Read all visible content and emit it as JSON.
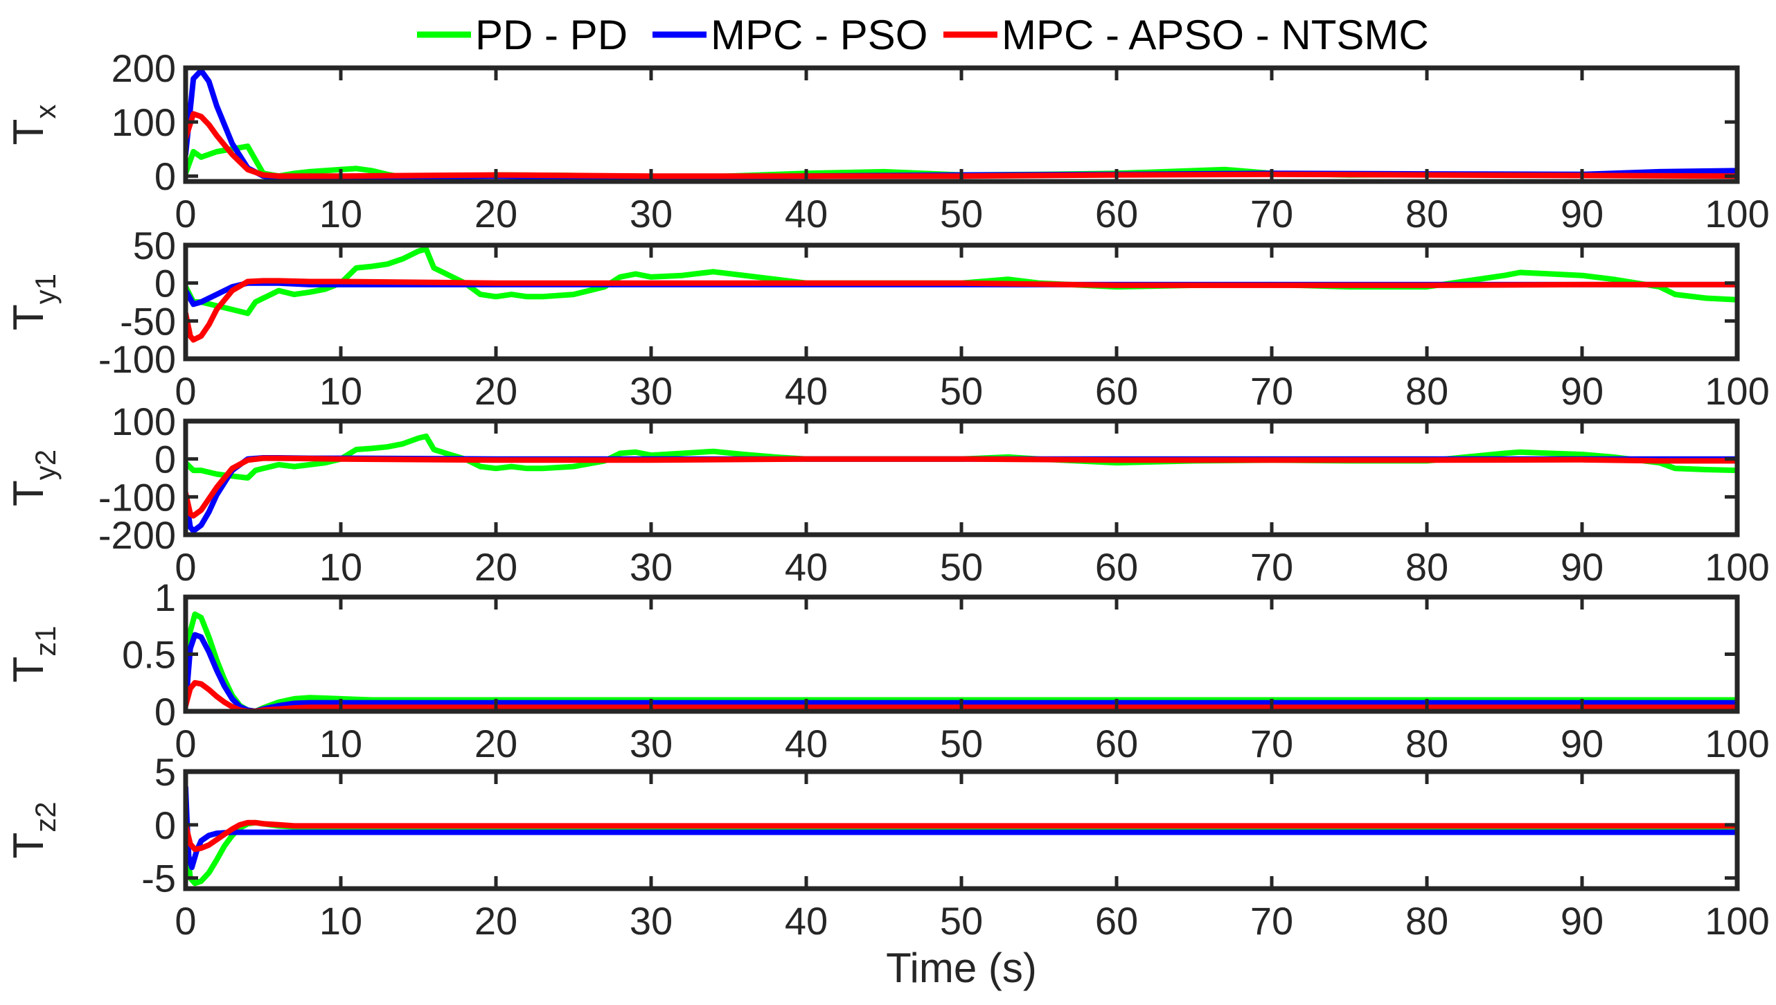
{
  "chart_data": {
    "type": "line",
    "legend": {
      "placement": "top",
      "entries": [
        {
          "label": "PD - PD",
          "color": "#00ff00"
        },
        {
          "label": "MPC - PSO",
          "color": "#0000ff"
        },
        {
          "label": "MPC - APSO - NTSMC",
          "color": "#ff0000"
        }
      ]
    },
    "xlabel": "Time (s)",
    "xlim": [
      0,
      100
    ],
    "xticks": [
      0,
      10,
      20,
      30,
      40,
      50,
      60,
      70,
      80,
      90,
      100
    ],
    "grid": false,
    "subplots": [
      {
        "ylabel_main": "T",
        "ylabel_sub": "x",
        "ylim": [
          -10,
          200
        ],
        "yticks": [
          0,
          100,
          200
        ],
        "ytick_labels": [
          "0",
          "100",
          "200"
        ],
        "series": [
          {
            "name": "PD - PD",
            "color": "#00ff00",
            "x": [
              0,
              0.5,
              1,
              2,
              3,
              4,
              4.5,
              5,
              6,
              7,
              8,
              10,
              11,
              12,
              13,
              14,
              15,
              15.5,
              16,
              17,
              18,
              20,
              25,
              30,
              35,
              40,
              45,
              50,
              55,
              60,
              65,
              67,
              70,
              75,
              80,
              85,
              90,
              95,
              100
            ],
            "y": [
              5,
              45,
              35,
              45,
              50,
              55,
              30,
              5,
              0,
              5,
              8,
              12,
              14,
              10,
              3,
              -2,
              -7,
              -15,
              -7,
              -2,
              0,
              2,
              1,
              -3,
              0,
              5,
              8,
              2,
              3,
              5,
              10,
              12,
              5,
              2,
              3,
              2,
              3,
              2,
              0
            ]
          },
          {
            "name": "MPC - PSO",
            "color": "#0000ff",
            "x": [
              0,
              0.5,
              1,
              1.5,
              2,
              3,
              4,
              5,
              6,
              8,
              10,
              20,
              30,
              40,
              50,
              60,
              70,
              80,
              90,
              95,
              100
            ],
            "y": [
              40,
              180,
              195,
              175,
              130,
              60,
              15,
              0,
              -3,
              -3,
              -2,
              0,
              -3,
              0,
              2,
              3,
              5,
              4,
              3,
              8,
              10
            ]
          },
          {
            "name": "MPC - APSO - NTSMC",
            "color": "#ff0000",
            "x": [
              0,
              0.5,
              1,
              1.5,
              2,
              3,
              4,
              5,
              6,
              8,
              10,
              20,
              30,
              40,
              50,
              60,
              70,
              80,
              90,
              100
            ],
            "y": [
              70,
              115,
              110,
              95,
              75,
              40,
              12,
              2,
              0,
              0,
              0,
              2,
              0,
              0,
              0,
              2,
              3,
              2,
              1,
              0
            ]
          }
        ]
      },
      {
        "ylabel_main": "T",
        "ylabel_sub": "y1",
        "ylim": [
          -100,
          50
        ],
        "yticks": [
          -100,
          -50,
          0,
          50
        ],
        "ytick_labels": [
          "-100",
          "-50",
          "0",
          "50"
        ],
        "series": [
          {
            "name": "PD - PD",
            "color": "#00ff00",
            "x": [
              0,
              0.5,
              1,
              2,
              3,
              4,
              4.5,
              5,
              6,
              7,
              8,
              9,
              10,
              11,
              12,
              13,
              14,
              15,
              15.5,
              16,
              17,
              18,
              19,
              20,
              21,
              22,
              23,
              25,
              27,
              28,
              29,
              30,
              32,
              34,
              36,
              38,
              40,
              45,
              50,
              53,
              55,
              60,
              65,
              70,
              75,
              80,
              85,
              86,
              88,
              90,
              92,
              95,
              96,
              98,
              100
            ],
            "y": [
              -5,
              -25,
              -25,
              -30,
              -35,
              -40,
              -25,
              -20,
              -10,
              -15,
              -12,
              -8,
              0,
              20,
              22,
              25,
              32,
              42,
              45,
              20,
              10,
              0,
              -15,
              -18,
              -15,
              -18,
              -18,
              -15,
              -5,
              8,
              12,
              8,
              10,
              15,
              10,
              5,
              0,
              0,
              0,
              5,
              0,
              -5,
              -3,
              -2,
              -5,
              -5,
              10,
              14,
              12,
              10,
              5,
              -5,
              -15,
              -20,
              -22
            ]
          },
          {
            "name": "MPC - PSO",
            "color": "#0000ff",
            "x": [
              0,
              0.5,
              1,
              2,
              3,
              4,
              5,
              6,
              8,
              10,
              20,
              30,
              40,
              50,
              60,
              70,
              80,
              90,
              100
            ],
            "y": [
              -10,
              -28,
              -25,
              -15,
              -5,
              0,
              0,
              0,
              -2,
              -2,
              -2,
              -2,
              -2,
              -2,
              -2,
              -2,
              -2,
              -2,
              -2
            ]
          },
          {
            "name": "MPC - APSO - NTSMC",
            "color": "#ff0000",
            "x": [
              0,
              0.3,
              0.5,
              1,
              1.5,
              2,
              3,
              4,
              5,
              6,
              8,
              10,
              20,
              30,
              40,
              50,
              60,
              70,
              80,
              90,
              100
            ],
            "y": [
              -40,
              -70,
              -75,
              -70,
              -55,
              -35,
              -10,
              2,
              3,
              3,
              2,
              2,
              0,
              0,
              0,
              0,
              -3,
              -3,
              -3,
              -2,
              -2
            ]
          }
        ]
      },
      {
        "ylabel_main": "T",
        "ylabel_sub": "y2",
        "ylim": [
          -200,
          100
        ],
        "yticks": [
          -200,
          -100,
          0,
          100
        ],
        "ytick_labels": [
          "-200",
          "-100",
          "0",
          "100"
        ],
        "series": [
          {
            "name": "PD - PD",
            "color": "#00ff00",
            "x": [
              0,
              0.5,
              1,
              2,
              3,
              4,
              4.5,
              5,
              6,
              7,
              8,
              9,
              10,
              11,
              12,
              13,
              14,
              15,
              15.5,
              16,
              17,
              18,
              19,
              20,
              21,
              22,
              23,
              25,
              27,
              28,
              29,
              30,
              32,
              34,
              36,
              38,
              40,
              45,
              50,
              53,
              55,
              60,
              65,
              70,
              75,
              80,
              85,
              86,
              88,
              90,
              92,
              95,
              96,
              98,
              100
            ],
            "y": [
              -10,
              -30,
              -30,
              -40,
              -45,
              -50,
              -30,
              -25,
              -15,
              -20,
              -15,
              -10,
              0,
              25,
              28,
              32,
              40,
              55,
              60,
              25,
              12,
              0,
              -20,
              -25,
              -20,
              -25,
              -25,
              -20,
              -5,
              15,
              18,
              10,
              15,
              20,
              12,
              5,
              0,
              0,
              0,
              5,
              0,
              -10,
              -5,
              -3,
              -5,
              -5,
              15,
              18,
              15,
              12,
              5,
              -10,
              -25,
              -28,
              -30
            ]
          },
          {
            "name": "MPC - PSO",
            "color": "#0000ff",
            "x": [
              0,
              0.3,
              0.5,
              1,
              1.5,
              2,
              3,
              4,
              5,
              6,
              8,
              10,
              20,
              30,
              40,
              50,
              60,
              70,
              80,
              90,
              100
            ],
            "y": [
              -100,
              -180,
              -190,
              -175,
              -140,
              -95,
              -30,
              0,
              3,
              3,
              2,
              2,
              0,
              0,
              0,
              0,
              0,
              0,
              0,
              0,
              0
            ]
          },
          {
            "name": "MPC - APSO - NTSMC",
            "color": "#ff0000",
            "x": [
              0,
              0.3,
              0.5,
              1,
              1.5,
              2,
              3,
              4,
              5,
              6,
              8,
              10,
              20,
              30,
              40,
              50,
              60,
              70,
              80,
              90,
              95,
              100
            ],
            "y": [
              -90,
              -145,
              -150,
              -135,
              -105,
              -75,
              -25,
              -3,
              2,
              2,
              1,
              0,
              -3,
              -3,
              0,
              0,
              -3,
              -3,
              -3,
              -2,
              -5,
              -5
            ]
          }
        ]
      },
      {
        "ylabel_main": "T",
        "ylabel_sub": "z1",
        "ylim": [
          0,
          1
        ],
        "yticks": [
          0,
          0.5,
          1
        ],
        "ytick_labels": [
          "0",
          "0.5",
          "1"
        ],
        "series": [
          {
            "name": "PD - PD",
            "color": "#00ff00",
            "x": [
              0,
              0.3,
              0.6,
              1,
              1.5,
              2,
              2.5,
              3,
              3.5,
              4,
              4.5,
              5,
              6,
              7,
              8,
              9,
              10,
              12,
              20,
              40,
              60,
              80,
              100
            ],
            "y": [
              0.05,
              0.7,
              0.85,
              0.82,
              0.65,
              0.45,
              0.28,
              0.14,
              0.05,
              0.01,
              0.0,
              0.03,
              0.08,
              0.11,
              0.12,
              0.115,
              0.11,
              0.1,
              0.1,
              0.1,
              0.1,
              0.1,
              0.1
            ]
          },
          {
            "name": "MPC - PSO",
            "color": "#0000ff",
            "x": [
              0,
              0.3,
              0.6,
              1,
              1.5,
              2,
              2.5,
              3,
              3.5,
              4,
              4.5,
              5,
              6,
              7,
              8,
              10,
              20,
              40,
              60,
              80,
              100
            ],
            "y": [
              0.05,
              0.55,
              0.67,
              0.65,
              0.52,
              0.36,
              0.22,
              0.11,
              0.04,
              0.01,
              0.0,
              0.02,
              0.05,
              0.07,
              0.075,
              0.075,
              0.075,
              0.075,
              0.075,
              0.075,
              0.075
            ]
          },
          {
            "name": "MPC - APSO - NTSMC",
            "color": "#ff0000",
            "x": [
              0,
              0.3,
              0.6,
              1,
              1.5,
              2,
              2.5,
              3,
              3.5,
              4,
              4.5,
              5,
              6,
              7,
              8,
              10,
              20,
              40,
              60,
              80,
              100
            ],
            "y": [
              0.05,
              0.2,
              0.25,
              0.24,
              0.19,
              0.13,
              0.08,
              0.04,
              0.01,
              0.0,
              0.0,
              0.01,
              0.02,
              0.03,
              0.035,
              0.035,
              0.035,
              0.035,
              0.035,
              0.035,
              0.035
            ]
          }
        ]
      },
      {
        "ylabel_main": "T",
        "ylabel_sub": "z2",
        "ylim": [
          -6,
          5
        ],
        "yticks": [
          -5,
          0,
          5
        ],
        "ytick_labels": [
          "-5",
          "0",
          "5"
        ],
        "series": [
          {
            "name": "PD - PD",
            "color": "#00ff00",
            "x": [
              0,
              0.3,
              0.6,
              1,
              1.5,
              2,
              2.5,
              3,
              3.5,
              4,
              4.5,
              5,
              6,
              7,
              8,
              10,
              20,
              40,
              60,
              80,
              100
            ],
            "y": [
              -1,
              -5,
              -5.5,
              -5.3,
              -4.5,
              -3.3,
              -2,
              -1,
              -0.3,
              0.1,
              0.2,
              0.1,
              -0.1,
              -0.2,
              -0.2,
              -0.2,
              -0.2,
              -0.2,
              -0.2,
              -0.2,
              -0.2
            ]
          },
          {
            "name": "MPC - PSO",
            "color": "#0000ff",
            "x": [
              0,
              0.1,
              0.2,
              0.4,
              0.7,
              1,
              1.5,
              2,
              3,
              4,
              5,
              10,
              20,
              40,
              60,
              80,
              100
            ],
            "y": [
              3.5,
              0,
              -3,
              -4,
              -2.5,
              -1.5,
              -1,
              -0.8,
              -0.7,
              -0.7,
              -0.7,
              -0.7,
              -0.7,
              -0.7,
              -0.7,
              -0.7,
              -0.7
            ]
          },
          {
            "name": "MPC - APSO - NTSMC",
            "color": "#ff0000",
            "x": [
              0,
              0.3,
              0.6,
              1,
              1.5,
              2,
              2.5,
              3,
              3.5,
              4,
              4.5,
              5,
              6,
              7,
              8,
              10,
              20,
              40,
              60,
              80,
              100
            ],
            "y": [
              0,
              -1.8,
              -2.3,
              -2.2,
              -1.9,
              -1.4,
              -0.9,
              -0.4,
              0.0,
              0.2,
              0.2,
              0.1,
              0.0,
              -0.1,
              -0.1,
              -0.1,
              -0.1,
              -0.1,
              -0.1,
              -0.1,
              -0.1
            ]
          }
        ]
      }
    ]
  }
}
